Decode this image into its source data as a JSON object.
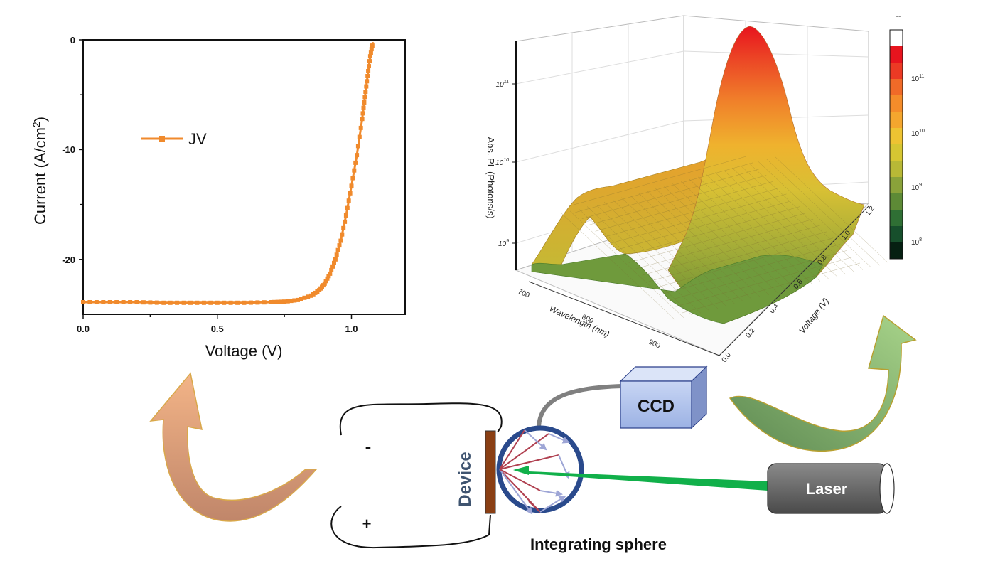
{
  "jv_plot": {
    "xlabel": "Voltage (V)",
    "ylabel_main": "Current (A/cm",
    "ylabel_sup": "2",
    "ylabel_end": ")",
    "legend": "JV",
    "series_color": "#f08a2c",
    "x_ticks": [
      "0.0",
      "0.5",
      "1.0"
    ],
    "y_ticks": [
      "0",
      "-10",
      "-20"
    ]
  },
  "chart_data": {
    "type": "line",
    "series": [
      {
        "name": "JV",
        "x": [
          0.0,
          0.1,
          0.2,
          0.3,
          0.4,
          0.5,
          0.6,
          0.7,
          0.75,
          0.8,
          0.85,
          0.88,
          0.9,
          0.92,
          0.94,
          0.96,
          0.98,
          1.0,
          1.02,
          1.04,
          1.05,
          1.06,
          1.07,
          1.08
        ],
        "y": [
          -23.9,
          -23.9,
          -23.9,
          -23.95,
          -23.95,
          -23.95,
          -23.95,
          -23.9,
          -23.85,
          -23.7,
          -23.3,
          -22.8,
          -22.2,
          -21.3,
          -20.0,
          -18.3,
          -16.0,
          -13.3,
          -10.5,
          -7.2,
          -5.2,
          -3.3,
          -1.5,
          -0.2
        ]
      }
    ],
    "xlabel": "Voltage (V)",
    "ylabel": "Current (A/cm2)",
    "xlim": [
      0.0,
      1.2
    ],
    "ylim": [
      -25,
      0
    ],
    "grid": false,
    "legend_position": "upper-left"
  },
  "pl_plot": {
    "z_label": "Abs. PL (Photons/s)",
    "x_label": "Wavelength (nm)",
    "y_label": "Voltage (V)",
    "z_ticks": [
      {
        "base": "10",
        "exp": "9"
      },
      {
        "base": "10",
        "exp": "10"
      },
      {
        "base": "10",
        "exp": "11"
      }
    ],
    "wavelength_ticks": [
      "700",
      "800",
      "900"
    ],
    "voltage_ticks": [
      "0.0",
      "0.2",
      "0.4",
      "0.6",
      "0.8",
      "1.0",
      "1.2"
    ],
    "colorbar_top": "--",
    "colorbar_ticks": [
      {
        "base": "10",
        "exp": "11"
      },
      {
        "base": "10",
        "exp": "10"
      },
      {
        "base": "10",
        "exp": "9"
      },
      {
        "base": "10",
        "exp": "8"
      }
    ],
    "colorbar_colors": [
      "#ffffff",
      "#e8141e",
      "#ec3a24",
      "#f06a28",
      "#f48c2a",
      "#f4a62e",
      "#eec332",
      "#d6c632",
      "#b8b836",
      "#8aa23a",
      "#5d8a36",
      "#2f6f34",
      "#174f2c",
      "#062012"
    ]
  },
  "setup": {
    "ccd_label": "CCD",
    "laser_label": "Laser",
    "device_label": "Device",
    "sphere_label": "Integrating sphere",
    "minus": "-",
    "plus": "+",
    "laser_beam_color": "#11b04a",
    "sphere_color": "#2a4a8c"
  }
}
